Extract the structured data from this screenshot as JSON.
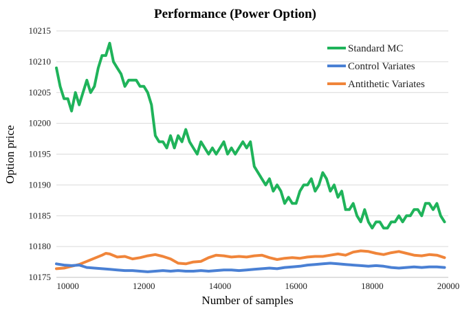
{
  "chart_data": {
    "type": "line",
    "title": "Performance (Power Option)",
    "xlabel": "Number of samples",
    "ylabel": "Option price",
    "xlim": [
      9700,
      20000
    ],
    "ylim": [
      10175,
      10215
    ],
    "x_ticks": [
      "10000",
      "12000",
      "14000",
      "16000",
      "18000",
      "20000"
    ],
    "y_ticks": [
      "10175",
      "10180",
      "10185",
      "10190",
      "10195",
      "10200",
      "10205",
      "10210",
      "10215"
    ],
    "grid": "horizontal",
    "legend_position": "top-right",
    "series": [
      {
        "name": "Standard MC",
        "color": "#1fb35a",
        "points": [
          [
            9700,
            10209
          ],
          [
            9800,
            10206
          ],
          [
            9900,
            10204
          ],
          [
            10000,
            10204
          ],
          [
            10100,
            10202
          ],
          [
            10200,
            10205
          ],
          [
            10300,
            10203
          ],
          [
            10400,
            10205
          ],
          [
            10500,
            10207
          ],
          [
            10600,
            10205
          ],
          [
            10700,
            10206
          ],
          [
            10800,
            10209
          ],
          [
            10900,
            10211
          ],
          [
            11000,
            10211
          ],
          [
            11100,
            10213
          ],
          [
            11200,
            10210
          ],
          [
            11300,
            10209
          ],
          [
            11400,
            10208
          ],
          [
            11500,
            10206
          ],
          [
            11600,
            10207
          ],
          [
            11700,
            10207
          ],
          [
            11800,
            10207
          ],
          [
            11900,
            10206
          ],
          [
            12000,
            10206
          ],
          [
            12100,
            10205
          ],
          [
            12200,
            10203
          ],
          [
            12300,
            10198
          ],
          [
            12400,
            10197
          ],
          [
            12500,
            10197
          ],
          [
            12600,
            10196
          ],
          [
            12700,
            10198
          ],
          [
            12800,
            10196
          ],
          [
            12900,
            10198
          ],
          [
            13000,
            10197
          ],
          [
            13100,
            10199
          ],
          [
            13200,
            10197
          ],
          [
            13300,
            10196
          ],
          [
            13400,
            10195
          ],
          [
            13500,
            10197
          ],
          [
            13600,
            10196
          ],
          [
            13700,
            10195
          ],
          [
            13800,
            10196
          ],
          [
            13900,
            10195
          ],
          [
            14000,
            10196
          ],
          [
            14100,
            10197
          ],
          [
            14200,
            10195
          ],
          [
            14300,
            10196
          ],
          [
            14400,
            10195
          ],
          [
            14500,
            10196
          ],
          [
            14600,
            10197
          ],
          [
            14700,
            10196
          ],
          [
            14800,
            10197
          ],
          [
            14900,
            10193
          ],
          [
            15000,
            10192
          ],
          [
            15100,
            10191
          ],
          [
            15200,
            10190
          ],
          [
            15300,
            10191
          ],
          [
            15400,
            10189
          ],
          [
            15500,
            10190
          ],
          [
            15600,
            10189
          ],
          [
            15700,
            10187
          ],
          [
            15800,
            10188
          ],
          [
            15900,
            10187
          ],
          [
            16000,
            10187
          ],
          [
            16100,
            10189
          ],
          [
            16200,
            10190
          ],
          [
            16300,
            10190
          ],
          [
            16400,
            10191
          ],
          [
            16500,
            10189
          ],
          [
            16600,
            10190
          ],
          [
            16700,
            10192
          ],
          [
            16800,
            10191
          ],
          [
            16900,
            10189
          ],
          [
            17000,
            10190
          ],
          [
            17100,
            10188
          ],
          [
            17200,
            10189
          ],
          [
            17300,
            10186
          ],
          [
            17400,
            10186
          ],
          [
            17500,
            10187
          ],
          [
            17600,
            10185
          ],
          [
            17700,
            10184
          ],
          [
            17800,
            10186
          ],
          [
            17900,
            10184
          ],
          [
            18000,
            10183
          ],
          [
            18100,
            10184
          ],
          [
            18200,
            10184
          ],
          [
            18300,
            10183
          ],
          [
            18400,
            10183
          ],
          [
            18500,
            10184
          ],
          [
            18600,
            10184
          ],
          [
            18700,
            10185
          ],
          [
            18800,
            10184
          ],
          [
            18900,
            10185
          ],
          [
            19000,
            10185
          ],
          [
            19100,
            10186
          ],
          [
            19200,
            10186
          ],
          [
            19300,
            10185
          ],
          [
            19400,
            10187
          ],
          [
            19500,
            10187
          ],
          [
            19600,
            10186
          ],
          [
            19700,
            10187
          ],
          [
            19800,
            10185
          ],
          [
            19900,
            10184
          ]
        ]
      },
      {
        "name": "Control Variates",
        "color": "#4a80d4",
        "points": [
          [
            9700,
            10177.2
          ],
          [
            9900,
            10177.0
          ],
          [
            10100,
            10176.9
          ],
          [
            10300,
            10177.0
          ],
          [
            10500,
            10176.6
          ],
          [
            10700,
            10176.5
          ],
          [
            10900,
            10176.4
          ],
          [
            11100,
            10176.3
          ],
          [
            11300,
            10176.2
          ],
          [
            11500,
            10176.1
          ],
          [
            11700,
            10176.1
          ],
          [
            11900,
            10176.0
          ],
          [
            12100,
            10175.9
          ],
          [
            12300,
            10176.0
          ],
          [
            12500,
            10176.1
          ],
          [
            12700,
            10176.0
          ],
          [
            12900,
            10176.1
          ],
          [
            13100,
            10176.0
          ],
          [
            13300,
            10176.0
          ],
          [
            13500,
            10176.1
          ],
          [
            13700,
            10176.0
          ],
          [
            13900,
            10176.1
          ],
          [
            14100,
            10176.2
          ],
          [
            14300,
            10176.2
          ],
          [
            14500,
            10176.1
          ],
          [
            14700,
            10176.2
          ],
          [
            14900,
            10176.3
          ],
          [
            15100,
            10176.4
          ],
          [
            15300,
            10176.5
          ],
          [
            15500,
            10176.4
          ],
          [
            15700,
            10176.6
          ],
          [
            15900,
            10176.7
          ],
          [
            16100,
            10176.8
          ],
          [
            16300,
            10177.0
          ],
          [
            16500,
            10177.1
          ],
          [
            16700,
            10177.2
          ],
          [
            16900,
            10177.3
          ],
          [
            17100,
            10177.2
          ],
          [
            17300,
            10177.1
          ],
          [
            17500,
            10177.0
          ],
          [
            17700,
            10176.9
          ],
          [
            17900,
            10176.8
          ],
          [
            18100,
            10176.9
          ],
          [
            18300,
            10176.8
          ],
          [
            18500,
            10176.6
          ],
          [
            18700,
            10176.5
          ],
          [
            18900,
            10176.6
          ],
          [
            19100,
            10176.7
          ],
          [
            19300,
            10176.6
          ],
          [
            19500,
            10176.7
          ],
          [
            19700,
            10176.7
          ],
          [
            19900,
            10176.6
          ]
        ]
      },
      {
        "name": "Antithetic Variates",
        "color": "#f0853a",
        "points": [
          [
            9700,
            10176.4
          ],
          [
            9900,
            10176.5
          ],
          [
            10100,
            10176.8
          ],
          [
            10300,
            10177.1
          ],
          [
            10500,
            10177.6
          ],
          [
            10700,
            10178.1
          ],
          [
            10900,
            10178.6
          ],
          [
            11000,
            10178.9
          ],
          [
            11100,
            10178.8
          ],
          [
            11300,
            10178.3
          ],
          [
            11500,
            10178.4
          ],
          [
            11700,
            10178.0
          ],
          [
            11900,
            10178.2
          ],
          [
            12100,
            10178.5
          ],
          [
            12300,
            10178.7
          ],
          [
            12500,
            10178.4
          ],
          [
            12700,
            10178.0
          ],
          [
            12900,
            10177.3
          ],
          [
            13100,
            10177.2
          ],
          [
            13300,
            10177.5
          ],
          [
            13500,
            10177.6
          ],
          [
            13700,
            10178.2
          ],
          [
            13900,
            10178.6
          ],
          [
            14100,
            10178.5
          ],
          [
            14300,
            10178.3
          ],
          [
            14500,
            10178.4
          ],
          [
            14700,
            10178.3
          ],
          [
            14900,
            10178.5
          ],
          [
            15100,
            10178.6
          ],
          [
            15300,
            10178.2
          ],
          [
            15500,
            10177.9
          ],
          [
            15700,
            10178.1
          ],
          [
            15900,
            10178.2
          ],
          [
            16100,
            10178.1
          ],
          [
            16300,
            10178.3
          ],
          [
            16500,
            10178.4
          ],
          [
            16700,
            10178.4
          ],
          [
            16900,
            10178.6
          ],
          [
            17100,
            10178.8
          ],
          [
            17300,
            10178.6
          ],
          [
            17500,
            10179.1
          ],
          [
            17700,
            10179.3
          ],
          [
            17900,
            10179.2
          ],
          [
            18100,
            10178.9
          ],
          [
            18300,
            10178.7
          ],
          [
            18500,
            10179.0
          ],
          [
            18700,
            10179.2
          ],
          [
            18900,
            10178.9
          ],
          [
            19100,
            10178.6
          ],
          [
            19300,
            10178.5
          ],
          [
            19500,
            10178.7
          ],
          [
            19700,
            10178.6
          ],
          [
            19900,
            10178.2
          ]
        ]
      }
    ]
  }
}
